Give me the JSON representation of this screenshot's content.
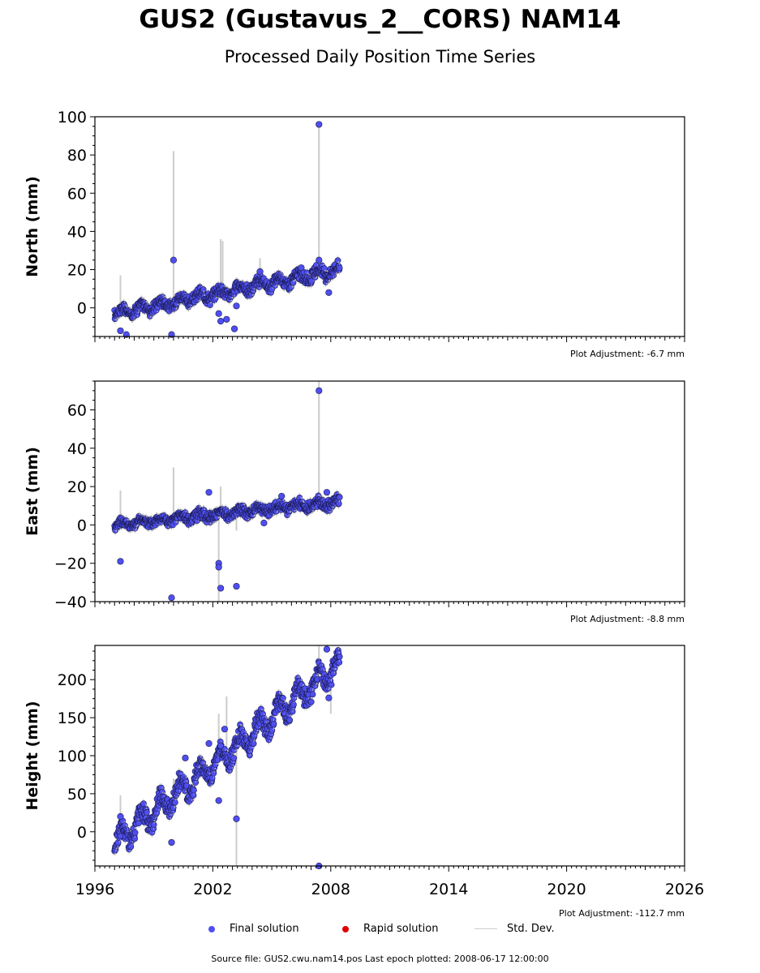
{
  "title": "GUS2 (Gustavus_2__CORS) NAM14",
  "subtitle": "Processed Daily Position Time Series",
  "legend": {
    "final": "Final solution",
    "rapid": "Rapid solution",
    "std": "Std. Dev.",
    "final_color": "#4f4ff0",
    "rapid_color": "#e00000",
    "std_color": "#cccccc"
  },
  "source_text": "Source file: GUS2.cwu.nam14.pos  Last epoch plotted: 2008-06-17 12:00:00",
  "chart_data": [
    {
      "type": "scatter",
      "ylabel": "North (mm)",
      "adjustment": "Plot Adjustment: -6.7 mm",
      "xlim": [
        1996,
        2026
      ],
      "ylim": [
        -15,
        100
      ],
      "yticks": [
        0,
        20,
        40,
        60,
        80,
        100
      ],
      "trend": {
        "start_year": 1997.0,
        "end_year": 2008.45,
        "start_value": -3,
        "end_value": 20
      },
      "seasonal_amplitude": 2,
      "outliers": [
        [
          1997.3,
          -12
        ],
        [
          1997.6,
          -14
        ],
        [
          1999.9,
          -14
        ],
        [
          2000.0,
          25
        ],
        [
          2002.3,
          -3
        ],
        [
          2002.4,
          -7
        ],
        [
          2002.7,
          -6
        ],
        [
          2003.1,
          -11
        ],
        [
          2003.2,
          1
        ],
        [
          2004.4,
          19
        ],
        [
          2006.5,
          21
        ],
        [
          2007.4,
          96
        ],
        [
          2007.4,
          25
        ],
        [
          2007.9,
          8
        ]
      ],
      "stddev_spikes": [
        [
          1997.3,
          17
        ],
        [
          2000.0,
          82
        ],
        [
          2002.4,
          36
        ],
        [
          2002.5,
          35
        ],
        [
          2004.4,
          26
        ],
        [
          2007.4,
          96
        ]
      ]
    },
    {
      "type": "scatter",
      "ylabel": "East (mm)",
      "adjustment": "Plot Adjustment: -8.8 mm",
      "xlim": [
        1996,
        2026
      ],
      "ylim": [
        -40,
        75
      ],
      "yticks": [
        -40,
        -20,
        0,
        20,
        40,
        60
      ],
      "trend": {
        "start_year": 1997.0,
        "end_year": 2008.45,
        "start_value": 0,
        "end_value": 12
      },
      "seasonal_amplitude": 1.5,
      "outliers": [
        [
          1997.3,
          -19
        ],
        [
          1999.9,
          -38
        ],
        [
          2001.8,
          17
        ],
        [
          2002.3,
          -20
        ],
        [
          2002.3,
          -22
        ],
        [
          2002.4,
          -33
        ],
        [
          2003.2,
          -32
        ],
        [
          2004.6,
          1
        ],
        [
          2005.5,
          15
        ],
        [
          2007.4,
          70
        ],
        [
          2007.8,
          17
        ]
      ],
      "stddev_spikes": [
        [
          1997.3,
          18
        ],
        [
          2000.0,
          30
        ],
        [
          2002.3,
          -40
        ],
        [
          2002.4,
          20
        ],
        [
          2003.2,
          -3
        ],
        [
          2007.4,
          75
        ]
      ]
    },
    {
      "type": "scatter",
      "ylabel": "Height (mm)",
      "adjustment": "Plot Adjustment: -112.7 mm",
      "xlim": [
        1996,
        2026
      ],
      "xticks": [
        1996,
        2002,
        2008,
        2014,
        2020,
        2026
      ],
      "ylim": [
        -45,
        245
      ],
      "yticks": [
        0,
        50,
        100,
        150,
        200
      ],
      "trend": {
        "start_year": 1997.0,
        "end_year": 2008.45,
        "start_value": -15,
        "end_value": 220
      },
      "seasonal_amplitude": 14,
      "outliers": [
        [
          1997.3,
          20
        ],
        [
          1999.9,
          -14
        ],
        [
          2000.6,
          97
        ],
        [
          2001.8,
          116
        ],
        [
          2002.3,
          41
        ],
        [
          2002.4,
          113
        ],
        [
          2002.6,
          135
        ],
        [
          2003.2,
          17
        ],
        [
          2007.4,
          -45
        ],
        [
          2007.9,
          176
        ],
        [
          2007.8,
          240
        ]
      ],
      "stddev_spikes": [
        [
          1997.3,
          48
        ],
        [
          2000.0,
          70
        ],
        [
          2002.3,
          155
        ],
        [
          2002.7,
          178
        ],
        [
          2003.2,
          -45
        ],
        [
          2007.4,
          245
        ],
        [
          2008.0,
          155
        ]
      ]
    }
  ]
}
